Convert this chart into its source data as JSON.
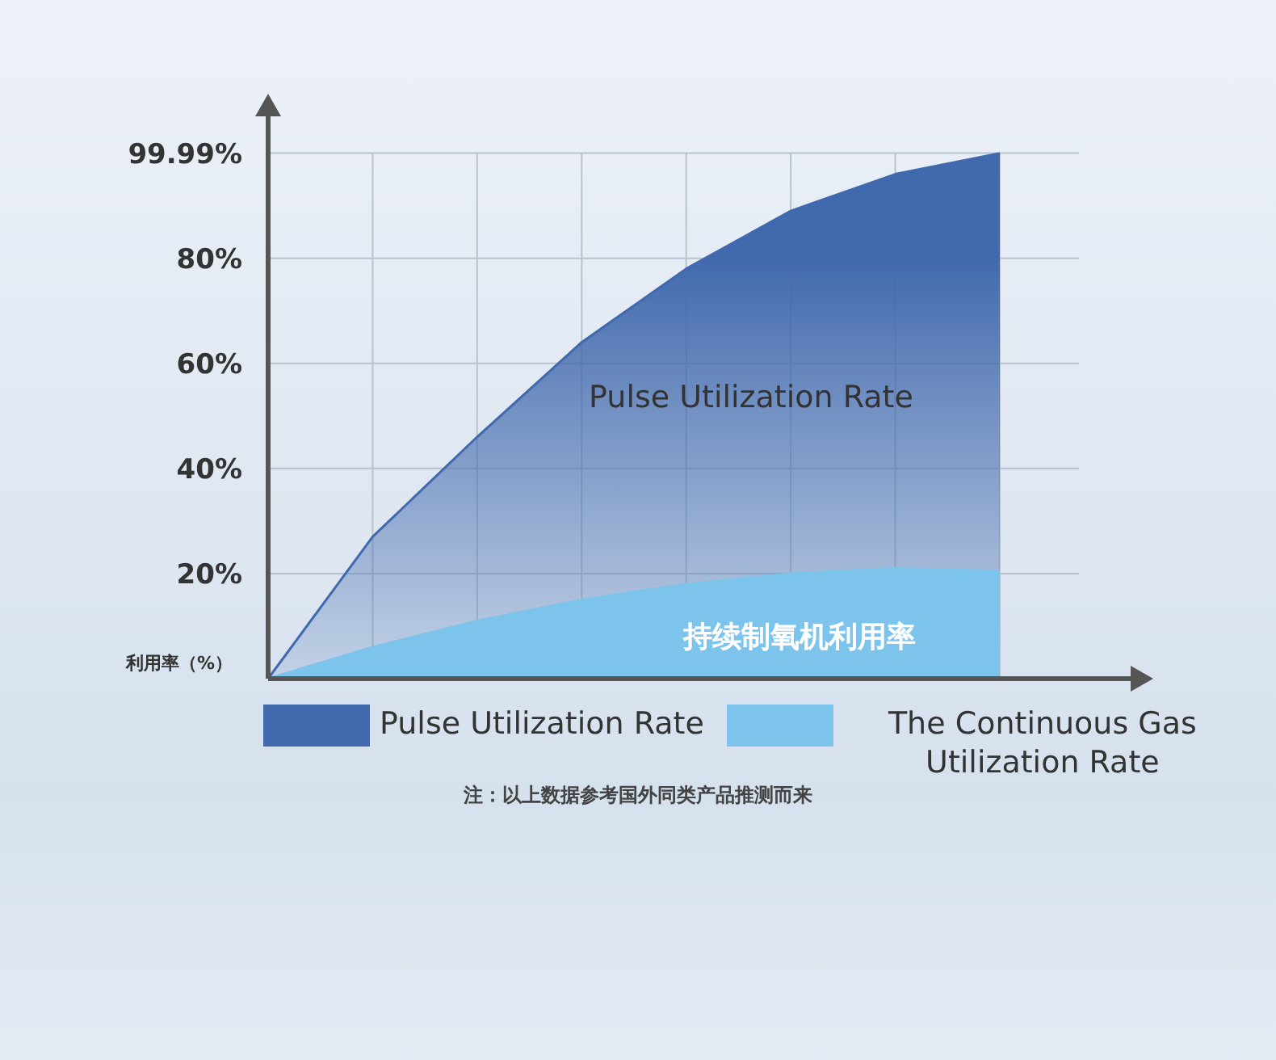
{
  "chart_data": {
    "type": "area",
    "ylabel": "利用率（%）",
    "categories": [
      null,
      null,
      null,
      null,
      null,
      null,
      null,
      null
    ],
    "series": [
      {
        "name": "Pulse Utilization Rate",
        "color": "#4169ad",
        "values": [
          0,
          27,
          46,
          64,
          78,
          89,
          96,
          99.99
        ]
      },
      {
        "name": "The Continuous Gas Utilization Rate",
        "color": "#7cc4ec",
        "values": [
          0,
          6,
          11,
          15,
          18,
          20,
          21,
          20.5
        ]
      }
    ],
    "ylim": [
      0,
      107
    ],
    "yticks": [
      {
        "value": 20,
        "label": "20%"
      },
      {
        "value": 40,
        "label": "40%"
      },
      {
        "value": 60,
        "label": "60%"
      },
      {
        "value": 80,
        "label": "80%"
      },
      {
        "value": 99.99,
        "label": "99.99%"
      }
    ],
    "grid": true,
    "legend": "bottom",
    "tick_labels": "y",
    "annotations": [
      "Pulse Utilization Rate",
      "持续制氧机利用率",
      "注：以上数据参考国外同类产品推测而来"
    ]
  }
}
